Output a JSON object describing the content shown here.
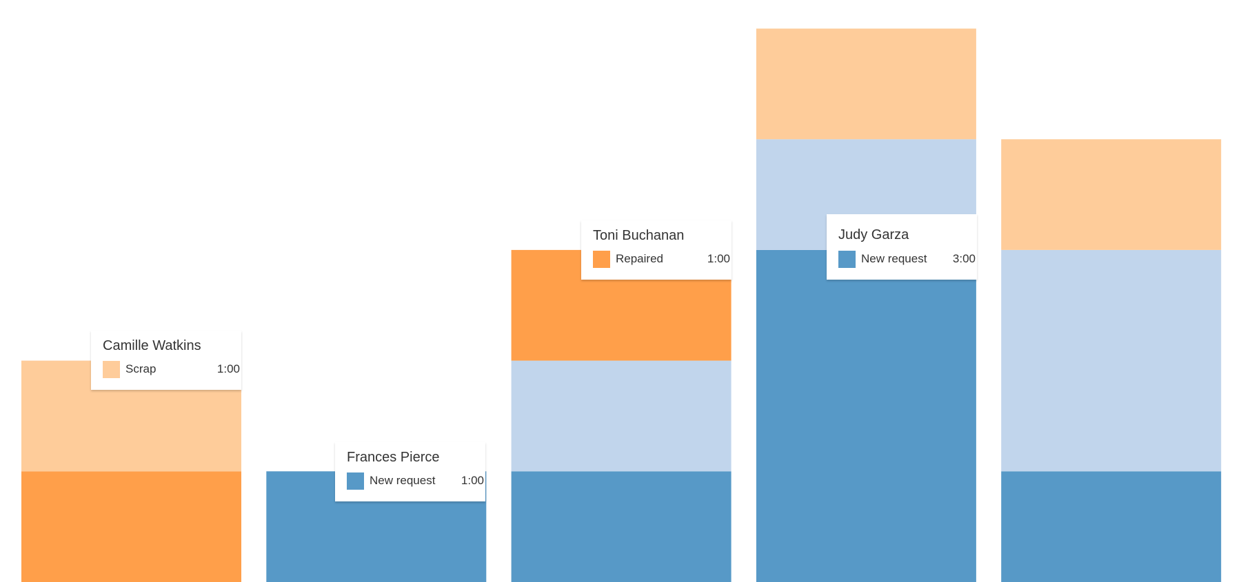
{
  "chart_data": {
    "type": "bar",
    "stacked": true,
    "categories": [
      "Camille Watkins",
      "Frances Pierce",
      "Toni Buchanan",
      "Judy Garza",
      ""
    ],
    "series": [
      {
        "name": "New request",
        "color": "#5799C7",
        "values": [
          0,
          1,
          1,
          3,
          1
        ]
      },
      {
        "color": "#C1D5EC",
        "values": [
          0,
          0,
          1,
          1,
          2
        ]
      },
      {
        "name": "Repaired",
        "color": "#FF9F4A",
        "values": [
          1,
          0,
          1,
          0,
          0
        ]
      },
      {
        "name": "Scrap",
        "color": "#FECC9A",
        "values": [
          1,
          0,
          0,
          1,
          1
        ]
      }
    ],
    "unit": "hours",
    "ylim": [
      0,
      5.25
    ],
    "grid": false,
    "axes_visible": false
  },
  "tooltips": [
    {
      "name": "Camille Watkins",
      "series": "Scrap",
      "color": "#FECC9A",
      "value": "1:00"
    },
    {
      "name": "Frances Pierce",
      "series": "New request",
      "color": "#5799C7",
      "value": "1:00"
    },
    {
      "name": "Toni Buchanan",
      "series": "Repaired",
      "color": "#FF9F4A",
      "value": "1:00"
    },
    {
      "name": "Judy Garza",
      "series": "New request",
      "color": "#5799C7",
      "value": "3:00"
    }
  ]
}
